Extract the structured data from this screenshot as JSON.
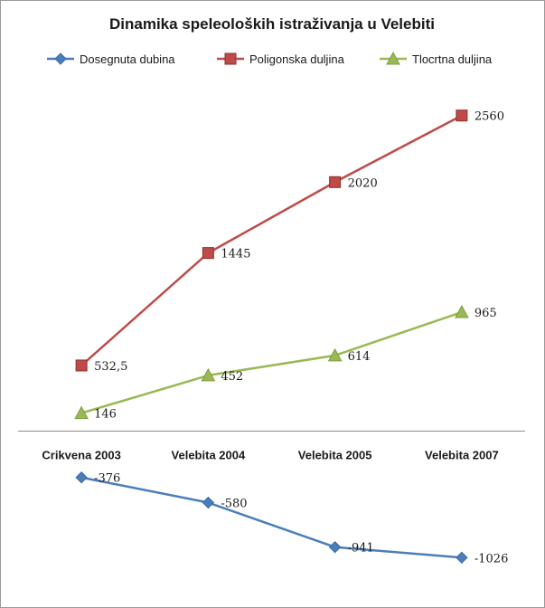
{
  "chart_data": {
    "type": "line",
    "title": "Dinamika speleoloških istraživanja u Velebiti",
    "categories": [
      "Crikvena 2003",
      "Velebita 2004",
      "Velebita 2005",
      "Velebita 2007"
    ],
    "series": [
      {
        "name": "Dosegnuta dubina",
        "values": [
          -376,
          -580,
          -941,
          -1026
        ],
        "labels": [
          "-376",
          "-580",
          "-941",
          "-1026"
        ],
        "color": "#4a7ebb",
        "marker": "diamond"
      },
      {
        "name": "Poligonska duljina",
        "values": [
          532.5,
          1445,
          2020,
          2560
        ],
        "labels": [
          "532,5",
          "1445",
          "2020",
          "2560"
        ],
        "color": "#be4b48",
        "marker": "square"
      },
      {
        "name": "Tlocrtna duljina",
        "values": [
          146,
          452,
          614,
          965
        ],
        "labels": [
          "146",
          "452",
          "614",
          "965"
        ],
        "color": "#98b954",
        "marker": "triangle"
      }
    ],
    "ylim": [
      -1200,
      2800
    ],
    "grid": false,
    "legend": "top",
    "xaxis_at": 0
  }
}
